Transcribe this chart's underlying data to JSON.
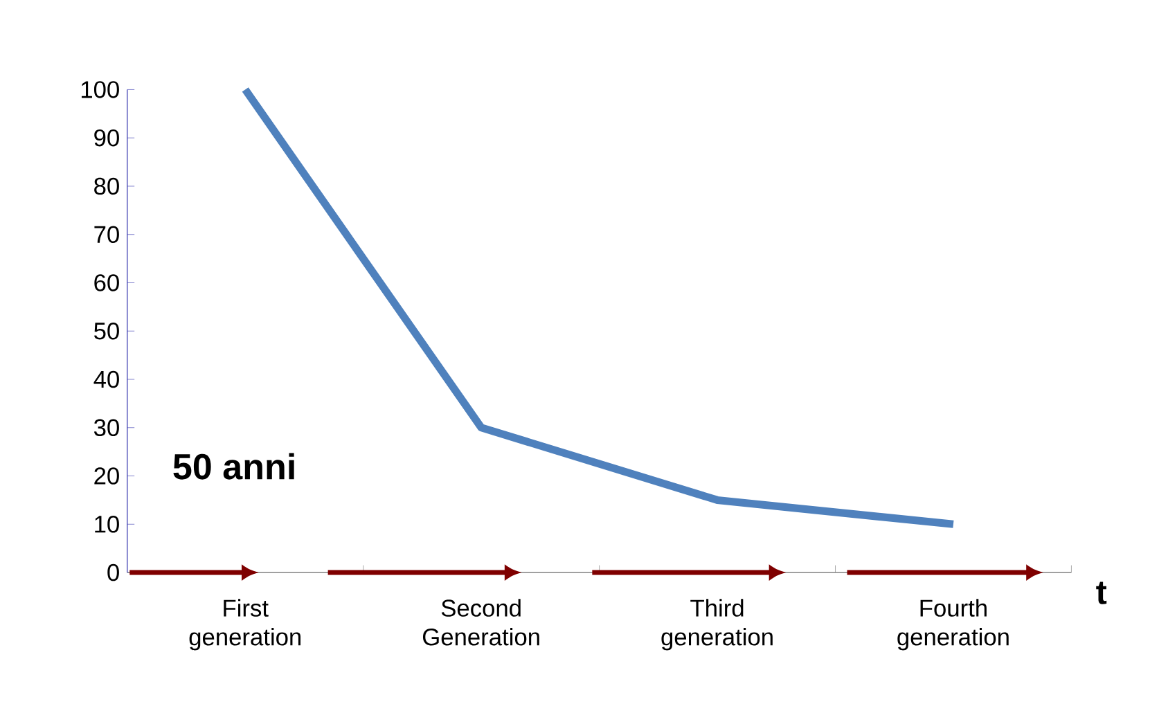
{
  "chart_data": {
    "type": "line",
    "xlabel": "t",
    "categories": [
      "First generation",
      "Second Generation",
      "Third generation",
      "Fourth generation"
    ],
    "series": [
      {
        "color": "#4f81bd",
        "values": [
          100,
          30,
          15,
          10
        ]
      }
    ],
    "ylim": [
      0,
      100
    ],
    "yticks": [
      0,
      10,
      20,
      30,
      40,
      50,
      60,
      70,
      80,
      90,
      100
    ],
    "annotations": [
      "50 anni"
    ],
    "marker": "none",
    "line_style": "solid"
  }
}
